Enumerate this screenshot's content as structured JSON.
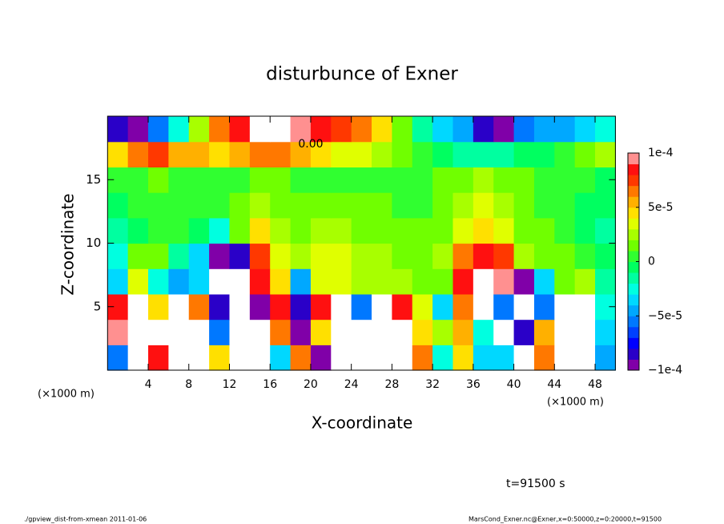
{
  "chart_data": {
    "type": "heatmap",
    "title": "disturbunce of Exner",
    "x_label": "X-coordinate",
    "y_label": "Z-coordinate",
    "x_unit": "(×1000 m)",
    "y_unit": "(×1000 m)",
    "time_label": "t=91500 s",
    "footer_left": "./gpview_dist-from-xmean  2011-01-06",
    "footer_right": "MarsCond_Exner.nc@Exner,x=0:50000,z=0:20000,t=91500",
    "contour_label": "0.00",
    "xlim": [
      0,
      50
    ],
    "ylim": [
      0,
      20
    ],
    "xticks": [
      4,
      8,
      12,
      16,
      20,
      24,
      28,
      32,
      36,
      40,
      44,
      48
    ],
    "yticks": [
      5,
      10,
      15
    ],
    "x": [
      1,
      3,
      5,
      7,
      9,
      11,
      13,
      15,
      17,
      19,
      21,
      23,
      25,
      27,
      29,
      31,
      33,
      35,
      37,
      39,
      41,
      43,
      45,
      47,
      49
    ],
    "y": [
      1,
      3,
      5,
      7,
      9,
      11,
      13,
      15,
      17,
      19
    ],
    "values": [
      [
        -6e-05,
        0.00012,
        8e-05,
        -0.00012,
        -0.00012,
        4e-05,
        0.00012,
        0.00012,
        -4e-05,
        6e-05,
        -9e-05,
        0.00012,
        -0.00012,
        -0.00012,
        0.00012,
        6e-05,
        -3e-05,
        4e-05,
        -4e-05,
        -4e-05,
        -0.00012,
        6e-05,
        0.00012,
        0.00012,
        -5e-05
      ],
      [
        9e-05,
        0.00012,
        0.00012,
        -0.00012,
        -0.00012,
        -6e-05,
        0.00012,
        0.00012,
        6e-05,
        -9e-05,
        4e-05,
        0.00012,
        -0.00012,
        0.00012,
        0.00012,
        4e-05,
        2e-05,
        5e-05,
        -3e-05,
        -0.00012,
        -8e-05,
        5e-05,
        0.00012,
        0.00012,
        -4e-05
      ],
      [
        8e-05,
        0.00012,
        4e-05,
        -0.00012,
        6e-05,
        -8e-05,
        -0.00012,
        -0.0001,
        8e-05,
        -8e-05,
        8e-05,
        0.00012,
        -6e-05,
        0.00012,
        8e-05,
        3e-05,
        -4e-05,
        6e-05,
        0.00012,
        -6e-05,
        -0.00012,
        -6e-05,
        0.00012,
        0.00012,
        -3e-05
      ],
      [
        -4e-05,
        3e-05,
        -3e-05,
        -5e-05,
        -4e-05,
        -0.00012,
        -0.00012,
        8e-05,
        4e-05,
        -5e-05,
        3e-05,
        3e-05,
        2e-05,
        2e-05,
        2e-05,
        1e-05,
        1e-05,
        8e-05,
        0.00012,
        0.0001,
        -9e-05,
        -4e-05,
        1e-05,
        2e-05,
        -2e-05
      ],
      [
        -3e-05,
        1e-05,
        1e-05,
        -2e-05,
        -4e-05,
        -9e-05,
        -8e-05,
        7e-05,
        3e-05,
        2e-05,
        3e-05,
        3e-05,
        2e-05,
        2e-05,
        1e-05,
        1e-05,
        2e-05,
        6e-05,
        8e-05,
        7e-05,
        2e-05,
        1e-05,
        1e-05,
        0,
        -1e-05
      ],
      [
        -2e-05,
        -1e-05,
        0,
        0,
        -1e-05,
        -3e-05,
        1e-05,
        4e-05,
        2e-05,
        1e-05,
        2e-05,
        2e-05,
        1e-05,
        1e-05,
        1e-05,
        1e-05,
        1e-05,
        3e-05,
        4e-05,
        3e-05,
        1e-05,
        1e-05,
        0,
        -1e-05,
        -2e-05
      ],
      [
        -1e-05,
        0,
        0,
        0,
        0,
        0,
        1e-05,
        2e-05,
        1e-05,
        1e-05,
        1e-05,
        1e-05,
        1e-05,
        1e-05,
        0,
        0,
        1e-05,
        2e-05,
        3e-05,
        2e-05,
        1e-05,
        0,
        0,
        -1e-05,
        -1e-05
      ],
      [
        0,
        0,
        1e-05,
        0,
        0,
        0,
        0,
        1e-05,
        1e-05,
        0,
        0,
        0,
        0,
        0,
        0,
        0,
        1e-05,
        1e-05,
        2e-05,
        1e-05,
        1e-05,
        0,
        0,
        0,
        -1e-05
      ],
      [
        4e-05,
        6e-05,
        7e-05,
        5e-05,
        5e-05,
        4e-05,
        5e-05,
        6e-05,
        6e-05,
        5e-05,
        4e-05,
        3e-05,
        3e-05,
        2e-05,
        1e-05,
        0,
        -1e-05,
        -2e-05,
        -2e-05,
        -2e-05,
        -1e-05,
        -1e-05,
        0,
        1e-05,
        2e-05
      ],
      [
        -8e-05,
        -9e-05,
        -6e-05,
        -3e-05,
        2e-05,
        6e-05,
        8e-05,
        0.00011,
        0.00011,
        9e-05,
        8e-05,
        7e-05,
        6e-05,
        4e-05,
        1e-05,
        -2e-05,
        -4e-05,
        -5e-05,
        -8e-05,
        -0.0001,
        -6e-05,
        -5e-05,
        -5e-05,
        -4e-05,
        -3e-05
      ]
    ],
    "clim": [
      -0.0001,
      0.0001
    ],
    "cticks": [
      {
        "value": -0.0001,
        "label": "−1e-4"
      },
      {
        "value": -5e-05,
        "label": "−5e-5"
      },
      0,
      {
        "value": 5e-05,
        "label": "5e-5"
      },
      {
        "value": 0.0001,
        "label": "1e-4"
      }
    ],
    "colors": [
      "#8000a8",
      "#2a00c8",
      "#0000ff",
      "#0040ff",
      "#0078ff",
      "#00a8ff",
      "#00d8ff",
      "#00ffe0",
      "#00ffa0",
      "#00ff60",
      "#30ff30",
      "#70ff00",
      "#a8ff00",
      "#e0ff00",
      "#ffe000",
      "#ffb000",
      "#ff7800",
      "#ff3800",
      "#ff1010",
      "#ff9090"
    ],
    "out_of_range_color": "#ffffff"
  }
}
